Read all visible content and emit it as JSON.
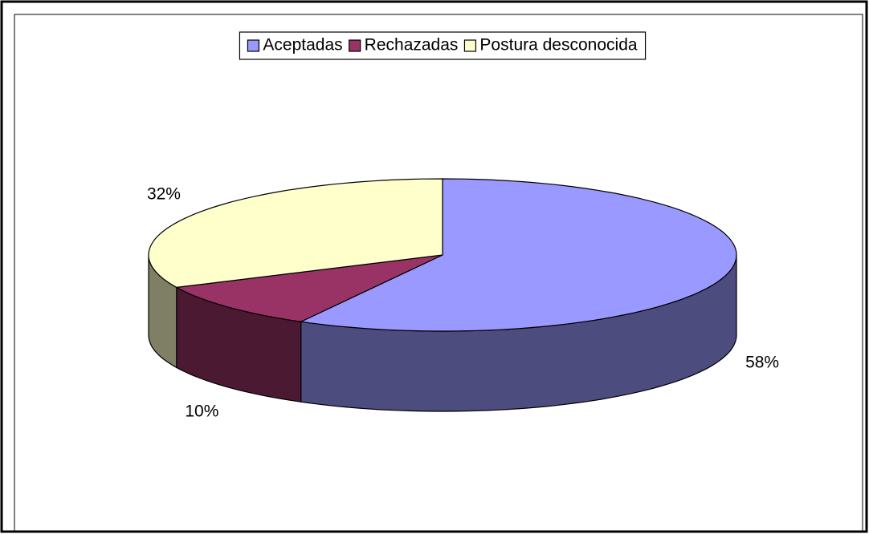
{
  "chart_data": {
    "type": "pie3d",
    "categories": [
      "Aceptadas",
      "Rechazadas",
      "Postura desconocida"
    ],
    "values": [
      58,
      10,
      32
    ],
    "value_labels": [
      "58%",
      "10%",
      "32%"
    ],
    "colors": [
      "#9999ff",
      "#993366",
      "#ffffcc"
    ],
    "legend": "top"
  }
}
